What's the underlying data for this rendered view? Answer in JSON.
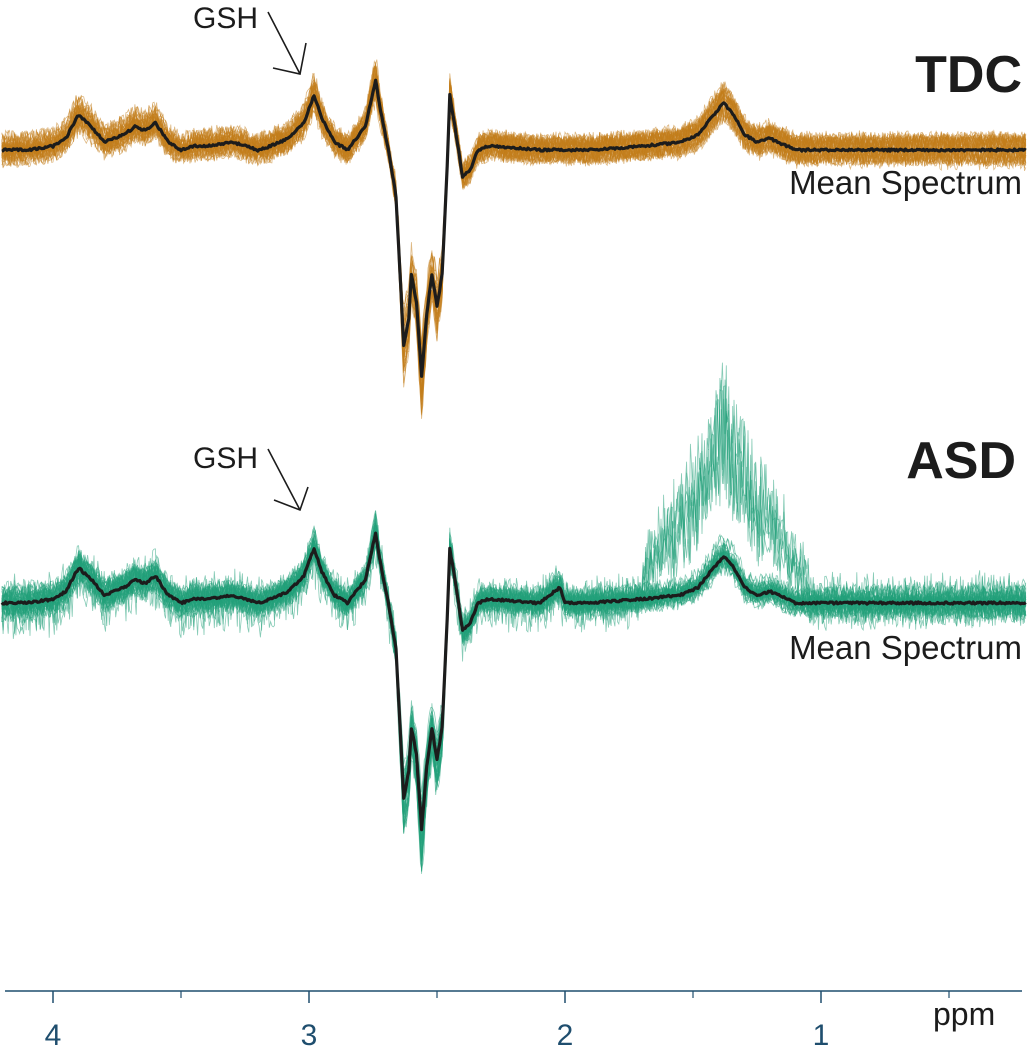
{
  "chart_data": {
    "type": "line",
    "xlabel": "ppm",
    "x_reversed": true,
    "xlim": [
      4.2,
      0.2
    ],
    "x_ticks": [
      {
        "value": 4,
        "label": "4"
      },
      {
        "value": 3,
        "label": "3"
      },
      {
        "value": 2,
        "label": "2"
      },
      {
        "value": 1,
        "label": "1"
      }
    ],
    "x_minor_ticks": [
      3.5,
      2.5,
      1.5,
      0.5
    ],
    "grid": false,
    "legend": "none",
    "panels": [
      {
        "group": "TDC",
        "color": "#c27d1c",
        "mean_color": "#1c1c1c",
        "mean_label": "Mean Spectrum",
        "annotation": {
          "text": "GSH",
          "ppm": 3.0
        },
        "n_individual_spectra": 40,
        "mean_spectrum": [
          [
            4.2,
            0.0
          ],
          [
            4.1,
            0.0
          ],
          [
            4.0,
            0.05
          ],
          [
            3.95,
            0.15
          ],
          [
            3.9,
            0.45
          ],
          [
            3.85,
            0.3
          ],
          [
            3.8,
            0.1
          ],
          [
            3.72,
            0.2
          ],
          [
            3.68,
            0.3
          ],
          [
            3.64,
            0.25
          ],
          [
            3.6,
            0.35
          ],
          [
            3.55,
            0.1
          ],
          [
            3.5,
            0.0
          ],
          [
            3.45,
            0.05
          ],
          [
            3.4,
            0.05
          ],
          [
            3.3,
            0.1
          ],
          [
            3.2,
            0.0
          ],
          [
            3.15,
            0.05
          ],
          [
            3.08,
            0.15
          ],
          [
            3.02,
            0.35
          ],
          [
            2.98,
            0.7
          ],
          [
            2.95,
            0.4
          ],
          [
            2.9,
            0.1
          ],
          [
            2.85,
            0.0
          ],
          [
            2.78,
            0.3
          ],
          [
            2.74,
            0.9
          ],
          [
            2.72,
            0.5
          ],
          [
            2.69,
            0.0
          ],
          [
            2.66,
            -0.6
          ],
          [
            2.63,
            -2.5
          ],
          [
            2.61,
            -2.15
          ],
          [
            2.6,
            -1.6
          ],
          [
            2.58,
            -1.95
          ],
          [
            2.56,
            -2.9
          ],
          [
            2.54,
            -2.1
          ],
          [
            2.52,
            -1.6
          ],
          [
            2.5,
            -2.0
          ],
          [
            2.48,
            -1.6
          ],
          [
            2.46,
            -0.2
          ],
          [
            2.45,
            0.7
          ],
          [
            2.43,
            0.3
          ],
          [
            2.4,
            -0.35
          ],
          [
            2.37,
            -0.25
          ],
          [
            2.34,
            0.0
          ],
          [
            2.3,
            0.05
          ],
          [
            2.1,
            0.0
          ],
          [
            1.9,
            0.0
          ],
          [
            1.7,
            0.05
          ],
          [
            1.55,
            0.1
          ],
          [
            1.48,
            0.2
          ],
          [
            1.42,
            0.45
          ],
          [
            1.38,
            0.6
          ],
          [
            1.34,
            0.45
          ],
          [
            1.3,
            0.2
          ],
          [
            1.25,
            0.1
          ],
          [
            1.2,
            0.15
          ],
          [
            1.1,
            0.0
          ],
          [
            0.9,
            0.0
          ],
          [
            0.6,
            0.0
          ],
          [
            0.2,
            0.0
          ]
        ]
      },
      {
        "group": "ASD",
        "color": "#22a07a",
        "mean_color": "#1c1c1c",
        "mean_label": "Mean Spectrum",
        "annotation": {
          "text": "GSH",
          "ppm": 3.0
        },
        "n_individual_spectra": 40,
        "mean_spectrum": [
          [
            4.2,
            0.0
          ],
          [
            4.1,
            0.0
          ],
          [
            4.0,
            0.05
          ],
          [
            3.95,
            0.15
          ],
          [
            3.9,
            0.45
          ],
          [
            3.85,
            0.3
          ],
          [
            3.8,
            0.1
          ],
          [
            3.72,
            0.2
          ],
          [
            3.68,
            0.3
          ],
          [
            3.64,
            0.25
          ],
          [
            3.6,
            0.35
          ],
          [
            3.55,
            0.1
          ],
          [
            3.5,
            0.0
          ],
          [
            3.45,
            0.05
          ],
          [
            3.4,
            0.05
          ],
          [
            3.3,
            0.1
          ],
          [
            3.2,
            0.0
          ],
          [
            3.15,
            0.05
          ],
          [
            3.08,
            0.15
          ],
          [
            3.02,
            0.35
          ],
          [
            2.98,
            0.7
          ],
          [
            2.95,
            0.4
          ],
          [
            2.9,
            0.1
          ],
          [
            2.85,
            0.0
          ],
          [
            2.78,
            0.3
          ],
          [
            2.74,
            0.9
          ],
          [
            2.72,
            0.5
          ],
          [
            2.69,
            0.0
          ],
          [
            2.66,
            -0.6
          ],
          [
            2.63,
            -2.5
          ],
          [
            2.61,
            -2.15
          ],
          [
            2.6,
            -1.6
          ],
          [
            2.58,
            -1.95
          ],
          [
            2.56,
            -2.9
          ],
          [
            2.54,
            -2.1
          ],
          [
            2.52,
            -1.6
          ],
          [
            2.5,
            -2.0
          ],
          [
            2.48,
            -1.6
          ],
          [
            2.46,
            -0.2
          ],
          [
            2.45,
            0.7
          ],
          [
            2.43,
            0.3
          ],
          [
            2.4,
            -0.35
          ],
          [
            2.37,
            -0.25
          ],
          [
            2.34,
            0.0
          ],
          [
            2.3,
            0.05
          ],
          [
            2.1,
            0.0
          ],
          [
            2.02,
            0.2
          ],
          [
            2.0,
            0.0
          ],
          [
            1.9,
            0.0
          ],
          [
            1.7,
            0.05
          ],
          [
            1.55,
            0.1
          ],
          [
            1.48,
            0.2
          ],
          [
            1.42,
            0.45
          ],
          [
            1.38,
            0.6
          ],
          [
            1.34,
            0.45
          ],
          [
            1.3,
            0.2
          ],
          [
            1.25,
            0.1
          ],
          [
            1.2,
            0.15
          ],
          [
            1.1,
            0.0
          ],
          [
            0.9,
            0.0
          ],
          [
            0.6,
            0.0
          ],
          [
            0.2,
            0.0
          ]
        ]
      }
    ]
  }
}
